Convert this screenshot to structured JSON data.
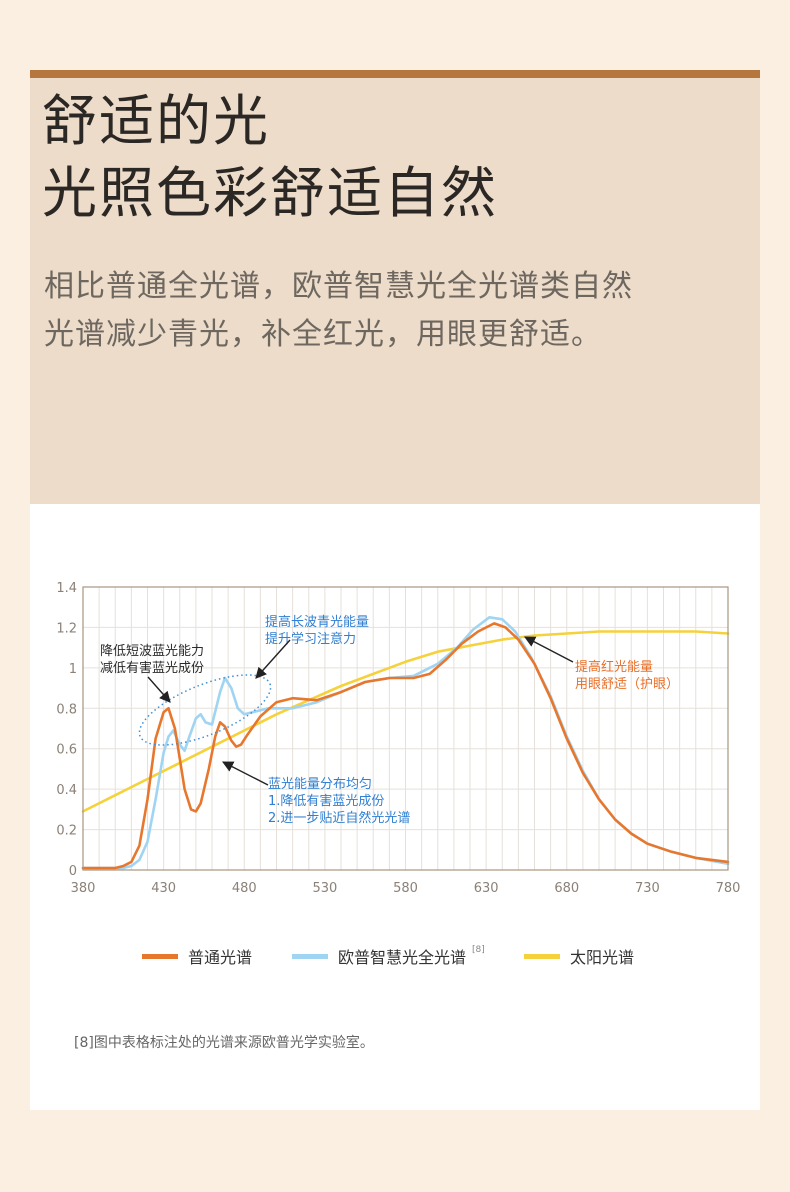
{
  "header": {
    "title_line1": "舒适的光",
    "title_line2": "光照色彩舒适自然",
    "subtitle_line1": "相比普通全光谱，欧普智慧光全光谱类自然",
    "subtitle_line2": "光谱减少青光，补全红光，用眼更舒适。"
  },
  "colors": {
    "accent_bar": "#b5773d",
    "hero_bg": "#ecdcc9",
    "ordinary": "#e8772e",
    "opple": "#9fd4f2",
    "sun": "#f5d23c"
  },
  "chart_data": {
    "type": "line",
    "x_ticks": [
      "380",
      "430",
      "480",
      "530",
      "580",
      "630",
      "680",
      "730",
      "780"
    ],
    "y_ticks": [
      "0",
      "0.2",
      "0.4",
      "0.6",
      "0.8",
      "1",
      "1.2",
      "1.4"
    ],
    "xlim": [
      380,
      780
    ],
    "ylim": [
      0,
      1.4
    ],
    "grid": true,
    "legend_position": "bottom",
    "series": [
      {
        "name": "普通光谱",
        "color": "#e8772e",
        "points": [
          [
            380,
            0.01
          ],
          [
            400,
            0.01
          ],
          [
            405,
            0.02
          ],
          [
            410,
            0.04
          ],
          [
            415,
            0.12
          ],
          [
            420,
            0.35
          ],
          [
            425,
            0.65
          ],
          [
            430,
            0.78
          ],
          [
            433,
            0.8
          ],
          [
            437,
            0.7
          ],
          [
            440,
            0.55
          ],
          [
            443,
            0.4
          ],
          [
            447,
            0.3
          ],
          [
            450,
            0.29
          ],
          [
            453,
            0.33
          ],
          [
            458,
            0.5
          ],
          [
            462,
            0.66
          ],
          [
            465,
            0.73
          ],
          [
            468,
            0.71
          ],
          [
            472,
            0.64
          ],
          [
            475,
            0.61
          ],
          [
            478,
            0.62
          ],
          [
            482,
            0.67
          ],
          [
            490,
            0.76
          ],
          [
            500,
            0.83
          ],
          [
            510,
            0.85
          ],
          [
            525,
            0.84
          ],
          [
            540,
            0.88
          ],
          [
            555,
            0.93
          ],
          [
            570,
            0.95
          ],
          [
            585,
            0.95
          ],
          [
            595,
            0.97
          ],
          [
            605,
            1.04
          ],
          [
            615,
            1.12
          ],
          [
            625,
            1.18
          ],
          [
            635,
            1.22
          ],
          [
            642,
            1.2
          ],
          [
            650,
            1.14
          ],
          [
            660,
            1.02
          ],
          [
            670,
            0.85
          ],
          [
            680,
            0.65
          ],
          [
            690,
            0.48
          ],
          [
            700,
            0.35
          ],
          [
            710,
            0.25
          ],
          [
            720,
            0.18
          ],
          [
            730,
            0.13
          ],
          [
            745,
            0.09
          ],
          [
            760,
            0.06
          ],
          [
            780,
            0.04
          ]
        ]
      },
      {
        "name": "欧普智慧光全光谱",
        "color": "#9fd4f2",
        "points": [
          [
            380,
            0.01
          ],
          [
            405,
            0.01
          ],
          [
            410,
            0.02
          ],
          [
            415,
            0.05
          ],
          [
            420,
            0.14
          ],
          [
            425,
            0.35
          ],
          [
            430,
            0.58
          ],
          [
            433,
            0.66
          ],
          [
            436,
            0.69
          ],
          [
            440,
            0.62
          ],
          [
            443,
            0.59
          ],
          [
            446,
            0.66
          ],
          [
            450,
            0.75
          ],
          [
            453,
            0.77
          ],
          [
            456,
            0.73
          ],
          [
            460,
            0.72
          ],
          [
            465,
            0.88
          ],
          [
            468,
            0.95
          ],
          [
            472,
            0.9
          ],
          [
            476,
            0.8
          ],
          [
            480,
            0.77
          ],
          [
            485,
            0.78
          ],
          [
            495,
            0.8
          ],
          [
            510,
            0.8
          ],
          [
            525,
            0.83
          ],
          [
            540,
            0.88
          ],
          [
            555,
            0.93
          ],
          [
            570,
            0.95
          ],
          [
            585,
            0.96
          ],
          [
            600,
            1.02
          ],
          [
            612,
            1.1
          ],
          [
            622,
            1.19
          ],
          [
            632,
            1.25
          ],
          [
            640,
            1.24
          ],
          [
            648,
            1.18
          ],
          [
            658,
            1.05
          ],
          [
            670,
            0.86
          ],
          [
            680,
            0.66
          ],
          [
            690,
            0.49
          ],
          [
            700,
            0.35
          ],
          [
            710,
            0.25
          ],
          [
            720,
            0.18
          ],
          [
            730,
            0.13
          ],
          [
            745,
            0.09
          ],
          [
            760,
            0.06
          ],
          [
            780,
            0.03
          ]
        ]
      },
      {
        "name": "太阳光谱",
        "color": "#f5d23c",
        "points": [
          [
            380,
            0.29
          ],
          [
            400,
            0.37
          ],
          [
            420,
            0.45
          ],
          [
            440,
            0.53
          ],
          [
            460,
            0.61
          ],
          [
            480,
            0.69
          ],
          [
            500,
            0.77
          ],
          [
            520,
            0.84
          ],
          [
            540,
            0.91
          ],
          [
            560,
            0.97
          ],
          [
            580,
            1.03
          ],
          [
            600,
            1.08
          ],
          [
            620,
            1.11
          ],
          [
            640,
            1.14
          ],
          [
            660,
            1.16
          ],
          [
            680,
            1.17
          ],
          [
            700,
            1.18
          ],
          [
            720,
            1.18
          ],
          [
            740,
            1.18
          ],
          [
            760,
            1.18
          ],
          [
            780,
            1.17
          ]
        ]
      }
    ],
    "annotations": [
      {
        "lines": [
          "降低短波蓝光能力",
          "减低有害蓝光成份"
        ],
        "color": "black"
      },
      {
        "lines": [
          "提高长波青光能量",
          "提升学习注意力"
        ],
        "color": "blue"
      },
      {
        "lines": [
          "蓝光能量分布均匀",
          "1.降低有害蓝光成份",
          "2.进一步贴近自然光光谱"
        ],
        "color": "blue"
      },
      {
        "lines": [
          "提高红光能量",
          "用眼舒适（护眼）"
        ],
        "color": "orange"
      }
    ]
  },
  "legend": {
    "items": [
      {
        "label": "普通光谱",
        "color": "#e8772e"
      },
      {
        "label": "欧普智慧光全光谱",
        "color": "#9fd4f2",
        "sup": "[8]"
      },
      {
        "label": "太阳光谱",
        "color": "#f5d23c"
      }
    ]
  },
  "footnote": "[8]图中表格标注处的光谱来源欧普光学实验室。"
}
